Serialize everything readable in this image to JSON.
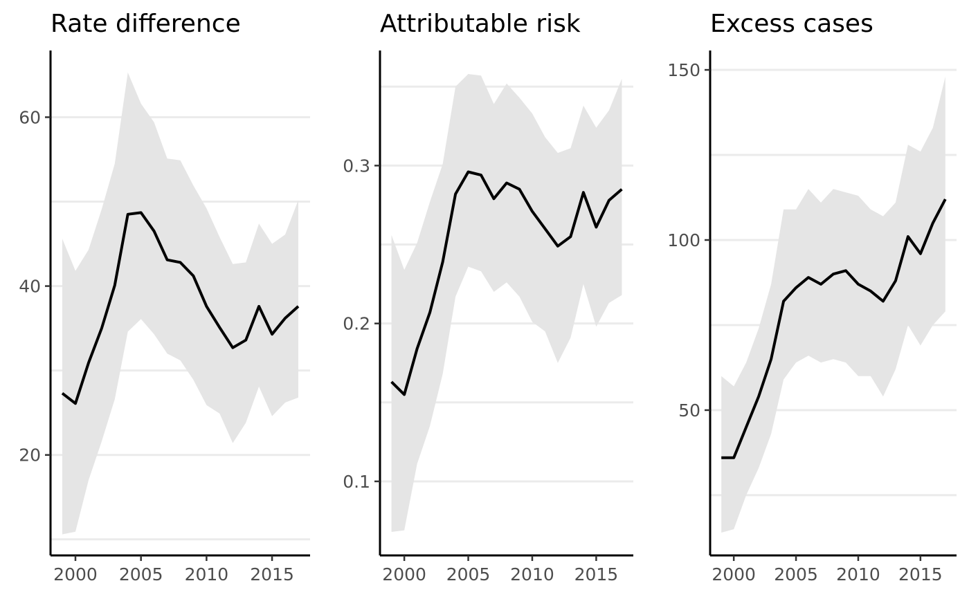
{
  "chart_data": [
    {
      "type": "line",
      "title": "Rate difference",
      "x": [
        1999,
        2000,
        2001,
        2002,
        2003,
        2004,
        2005,
        2006,
        2007,
        2008,
        2009,
        2010,
        2011,
        2012,
        2013,
        2014,
        2015,
        2016,
        2017
      ],
      "series": [
        {
          "values": [
            27.3,
            26.1,
            30.9,
            35.0,
            40.1,
            48.5,
            48.7,
            46.5,
            43.1,
            42.8,
            41.2,
            37.6,
            35.1,
            32.7,
            33.6,
            37.6,
            34.3,
            36.2,
            37.6
          ],
          "lower": [
            10.6,
            10.9,
            17.0,
            21.6,
            26.6,
            34.6,
            36.1,
            34.3,
            32.0,
            31.2,
            28.9,
            25.9,
            24.9,
            21.4,
            23.8,
            28.1,
            24.6,
            26.2,
            26.8
          ],
          "upper": [
            45.6,
            41.8,
            44.3,
            49.1,
            54.5,
            65.3,
            61.6,
            59.4,
            55.1,
            54.9,
            51.9,
            49.2,
            45.8,
            42.6,
            42.8,
            47.4,
            45.0,
            46.1,
            50.2
          ]
        }
      ],
      "xticks": [
        2000,
        2005,
        2010,
        2015
      ],
      "yticks": [
        20,
        40,
        60
      ],
      "yminor": [
        10,
        30,
        50
      ],
      "xlim": [
        1998.1,
        2017.9
      ],
      "ylim": [
        8.1,
        67.9
      ],
      "grid": true,
      "colors": {
        "line": "#000000",
        "ribbon": "#e5e5e5"
      }
    },
    {
      "type": "line",
      "title": "Attributable risk",
      "x": [
        1999,
        2000,
        2001,
        2002,
        2003,
        2004,
        2005,
        2006,
        2007,
        2008,
        2009,
        2010,
        2011,
        2012,
        2013,
        2014,
        2015,
        2016,
        2017
      ],
      "series": [
        {
          "values": [
            0.163,
            0.155,
            0.184,
            0.207,
            0.239,
            0.282,
            0.296,
            0.294,
            0.279,
            0.289,
            0.285,
            0.271,
            0.26,
            0.249,
            0.255,
            0.283,
            0.261,
            0.278,
            0.285
          ],
          "lower": [
            0.068,
            0.069,
            0.111,
            0.135,
            0.168,
            0.217,
            0.236,
            0.233,
            0.22,
            0.226,
            0.217,
            0.201,
            0.195,
            0.175,
            0.191,
            0.225,
            0.198,
            0.213,
            0.218
          ],
          "upper": [
            0.256,
            0.234,
            0.251,
            0.277,
            0.301,
            0.35,
            0.358,
            0.357,
            0.339,
            0.352,
            0.343,
            0.333,
            0.318,
            0.308,
            0.311,
            0.338,
            0.324,
            0.335,
            0.355
          ]
        }
      ],
      "xticks": [
        2000,
        2005,
        2010,
        2015
      ],
      "yticks": [
        0.1,
        0.2,
        0.3
      ],
      "yminor": [
        0.15,
        0.25,
        0.35
      ],
      "xlim": [
        1998.1,
        2017.9
      ],
      "ylim": [
        0.0531,
        0.3729
      ],
      "grid": true,
      "colors": {
        "line": "#000000",
        "ribbon": "#e5e5e5"
      }
    },
    {
      "type": "line",
      "title": "Excess cases",
      "x": [
        1999,
        2000,
        2001,
        2002,
        2003,
        2004,
        2005,
        2006,
        2007,
        2008,
        2009,
        2010,
        2011,
        2012,
        2013,
        2014,
        2015,
        2016,
        2017
      ],
      "series": [
        {
          "values": [
            36,
            36,
            45,
            54,
            65,
            82,
            86,
            89,
            87,
            90,
            91,
            87,
            85,
            82,
            88,
            101,
            96,
            105,
            112
          ],
          "lower": [
            14,
            15,
            25,
            33,
            43,
            59,
            64,
            66,
            64,
            65,
            64,
            60,
            60,
            54,
            62,
            75,
            69,
            75,
            79
          ],
          "upper": [
            60,
            57,
            64,
            74,
            87,
            109,
            109,
            115,
            111,
            115,
            114,
            113,
            109,
            107,
            111,
            128,
            126,
            133,
            148
          ]
        }
      ],
      "xticks": [
        2000,
        2005,
        2010,
        2015
      ],
      "yticks": [
        50,
        100,
        150
      ],
      "yminor": [
        25,
        75,
        125
      ],
      "xlim": [
        1998.1,
        2017.9
      ],
      "ylim": [
        7.3,
        155.7
      ],
      "grid": true,
      "colors": {
        "line": "#000000",
        "ribbon": "#e5e5e5"
      }
    }
  ]
}
